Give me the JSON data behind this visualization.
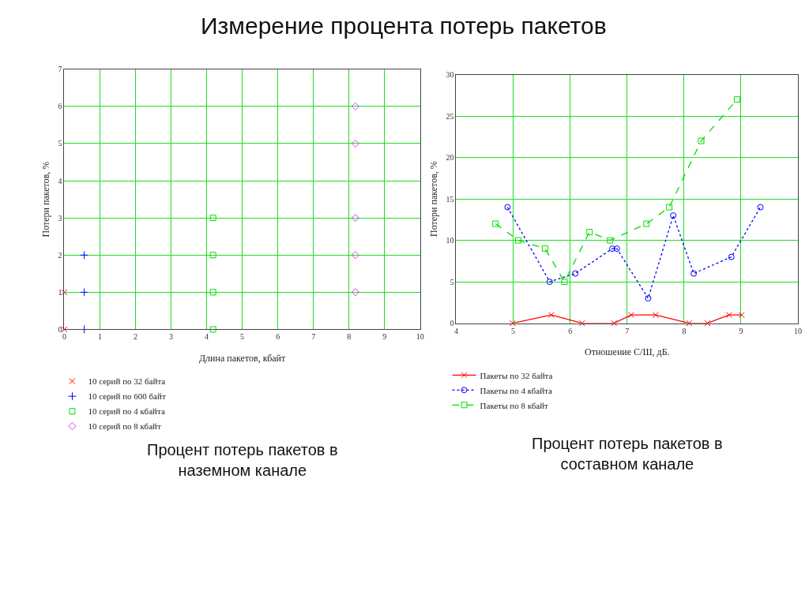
{
  "chart_data": [
    {
      "type": "scatter",
      "title": "Измерение процента потерь пакетов",
      "xlabel": "Длина пакетов, кбайт",
      "ylabel": "Потери пакетов, %",
      "xlim": [
        0,
        10
      ],
      "xticks": [
        0,
        1,
        2,
        3,
        4,
        5,
        6,
        7,
        8,
        9,
        10
      ],
      "ylim": [
        0,
        7
      ],
      "yticks": [
        0,
        1,
        2,
        3,
        4,
        5,
        6,
        7
      ],
      "grid": true,
      "legend": "bottom left",
      "annotations": [
        "Процент потерь пакетов в наземном канале"
      ],
      "series": [
        {
          "name": "10 серий по 32 байта",
          "color": "#ff0000",
          "marker": "x",
          "x": [
            0,
            0
          ],
          "values": [
            0,
            1
          ]
        },
        {
          "name": "10 серий по 600 байт",
          "color": "#0000ff",
          "marker": "cross",
          "x": [
            0.56,
            0.56,
            0.56
          ],
          "values": [
            0,
            1,
            2
          ]
        },
        {
          "name": "10 серий по 4 кбайта",
          "color": "#00dd00",
          "marker": "square",
          "x": [
            4.18,
            4.18,
            4.18,
            4.18
          ],
          "values": [
            0,
            1,
            2,
            3
          ]
        },
        {
          "name": "10 серий по 8 кбайт",
          "color": "#dd44dd",
          "marker": "diamond",
          "x": [
            8.18,
            8.18,
            8.18,
            8.18,
            8.18
          ],
          "values": [
            1,
            2,
            3,
            5,
            6
          ]
        }
      ]
    },
    {
      "type": "line",
      "xlabel": "Отношение С/Ш, дБ.",
      "ylabel": "Потери пакетов, %",
      "xlim": [
        4,
        10
      ],
      "xticks": [
        4,
        5,
        6,
        7,
        8,
        9,
        10
      ],
      "ylim": [
        0,
        30
      ],
      "yticks": [
        0,
        5,
        10,
        15,
        20,
        25,
        30
      ],
      "grid": true,
      "legend": "bottom left",
      "annotations": [
        "Процент потерь пакетов в составном канале"
      ],
      "series": [
        {
          "name": "Пакеты по 32 байта",
          "color": "#ff0000",
          "marker": "x",
          "line_style": "solid",
          "x": [
            4.99,
            5.67,
            6.21,
            6.77,
            7.07,
            7.5,
            8.09,
            8.41,
            8.79,
            9.01
          ],
          "values": [
            0,
            1,
            0,
            0,
            1,
            1,
            0,
            0,
            1,
            1
          ]
        },
        {
          "name": "Пакеты по 4 кбайта",
          "color": "#0000ff",
          "marker": "circle",
          "line_style": "dotted",
          "x": [
            4.9,
            5.64,
            6.09,
            6.74,
            6.82,
            7.37,
            7.81,
            8.17,
            8.83,
            9.34
          ],
          "values": [
            14,
            5,
            6,
            9,
            9,
            3,
            13,
            6,
            8,
            14
          ]
        },
        {
          "name": "Пакеты по 8 кбайт",
          "color": "#00dd00",
          "marker": "square",
          "line_style": "dashed",
          "x": [
            4.69,
            5.09,
            5.56,
            5.9,
            6.34,
            6.7,
            7.34,
            7.74,
            8.3,
            8.93
          ],
          "values": [
            12,
            10,
            9,
            5,
            11,
            10,
            12,
            14,
            22,
            27
          ]
        }
      ]
    }
  ]
}
